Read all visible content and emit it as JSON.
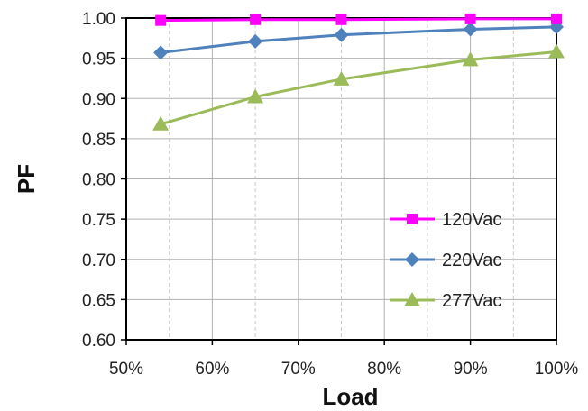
{
  "chart_data": {
    "type": "line",
    "xlabel": "Load",
    "ylabel": "PF",
    "x_ticks": [
      "50%",
      "60%",
      "70%",
      "80%",
      "90%",
      "100%"
    ],
    "x_tick_values": [
      50,
      60,
      70,
      80,
      90,
      100
    ],
    "y_ticks": [
      "0.60",
      "0.65",
      "0.70",
      "0.75",
      "0.80",
      "0.85",
      "0.90",
      "0.95",
      "1.00"
    ],
    "y_tick_values": [
      0.6,
      0.65,
      0.7,
      0.75,
      0.8,
      0.85,
      0.9,
      0.95,
      1.0
    ],
    "xlim": [
      50,
      100
    ],
    "ylim": [
      0.6,
      1.0
    ],
    "grid": true,
    "legend_position": "bottom-right",
    "series": [
      {
        "name": "120Vac",
        "color": "#ff00ff",
        "marker": "square",
        "x": [
          54,
          65,
          75,
          90,
          100
        ],
        "y": [
          0.997,
          0.998,
          0.998,
          0.999,
          0.999
        ]
      },
      {
        "name": "220Vac",
        "color": "#4f81bd",
        "marker": "diamond",
        "x": [
          54,
          65,
          75,
          90,
          100
        ],
        "y": [
          0.957,
          0.971,
          0.979,
          0.986,
          0.989
        ]
      },
      {
        "name": "277Vac",
        "color": "#9bbb59",
        "marker": "triangle",
        "x": [
          54,
          65,
          75,
          90,
          100
        ],
        "y": [
          0.868,
          0.902,
          0.924,
          0.948,
          0.958
        ]
      }
    ]
  }
}
